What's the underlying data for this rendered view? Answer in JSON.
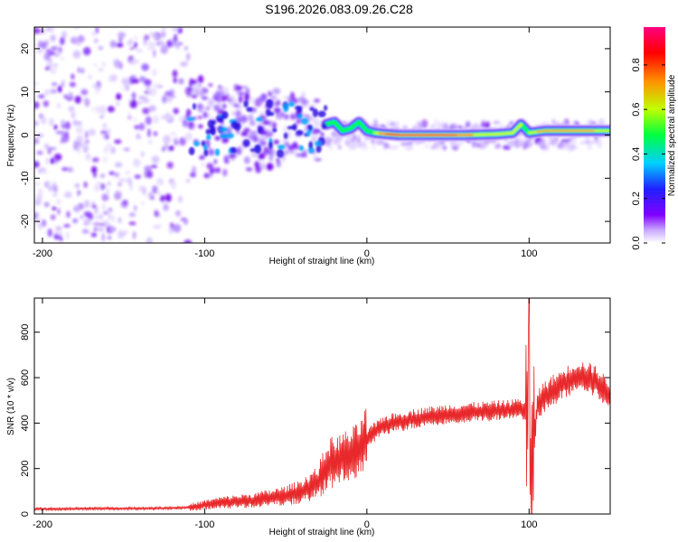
{
  "title": "S196.2026.083.09.26.C28",
  "chart_data": [
    {
      "type": "heatmap",
      "xlabel": "Height of straight line (km)",
      "ylabel": "Frequency (Hz)",
      "xlim": [
        -205,
        150
      ],
      "ylim": [
        -25,
        25
      ],
      "xticks": [
        -200,
        -100,
        0,
        100
      ],
      "yticks": [
        -20,
        -10,
        0,
        10,
        20
      ],
      "colorbar": {
        "label": "Normalized spectral amplitude",
        "range": [
          0.0,
          0.97
        ],
        "ticks": [
          0.0,
          0.2,
          0.4,
          0.6,
          0.8
        ],
        "stops": [
          "#ffffff",
          "#c8a8ff",
          "#8000ff",
          "#2020ff",
          "#00d0ff",
          "#00ff40",
          "#c0ff00",
          "#ff9000",
          "#ff0000",
          "#ff0080"
        ]
      },
      "ridge": {
        "x": [
          -25,
          -20,
          -15,
          -10,
          -5,
          0,
          5,
          10,
          20,
          40,
          60,
          80,
          90,
          95,
          100,
          110,
          150
        ],
        "y": [
          2.5,
          3.0,
          1.0,
          1.5,
          3.0,
          1.0,
          0.5,
          0.3,
          0.0,
          0.0,
          0.0,
          0.2,
          0.5,
          2.5,
          0.5,
          1.0,
          1.0
        ]
      }
    },
    {
      "type": "line",
      "xlabel": "Height of straight line (km)",
      "ylabel": "SNR (10 * v/v)",
      "xlim": [
        -205,
        150
      ],
      "ylim": [
        0,
        950
      ],
      "xticks": [
        -200,
        -100,
        0,
        100
      ],
      "yticks": [
        0,
        200,
        400,
        600,
        800
      ],
      "series": [
        {
          "name": "SNR",
          "color": "#e8282a",
          "x": [
            -205,
            -190,
            -170,
            -150,
            -130,
            -110,
            -100,
            -90,
            -80,
            -70,
            -60,
            -50,
            -40,
            -30,
            -25,
            -20,
            -15,
            -10,
            -5,
            0,
            5,
            10,
            20,
            30,
            40,
            50,
            60,
            70,
            80,
            90,
            95,
            100,
            101,
            105,
            110,
            120,
            130,
            140,
            150
          ],
          "y": [
            22,
            22,
            24,
            24,
            25,
            28,
            40,
            50,
            55,
            60,
            70,
            80,
            100,
            140,
            200,
            230,
            250,
            260,
            280,
            330,
            360,
            390,
            405,
            420,
            430,
            440,
            445,
            450,
            455,
            460,
            470,
            430,
            120,
            480,
            520,
            570,
            610,
            590,
            520
          ]
        }
      ]
    }
  ]
}
